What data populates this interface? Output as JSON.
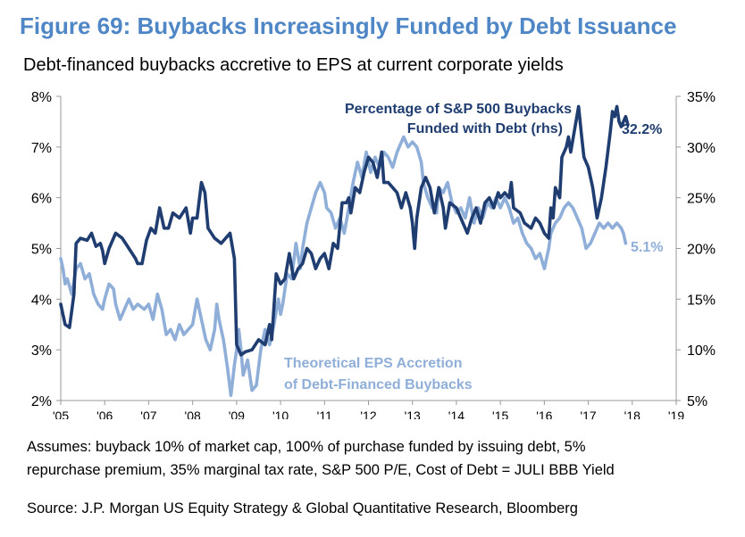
{
  "title": "Figure 69: Buybacks Increasingly Funded by Debt Issuance",
  "subtitle": "Debt-financed buybacks accretive to EPS at current corporate yields",
  "notes": [
    "Assumes: buyback 10% of market cap, 100% of purchase funded by issuing debt, 5%",
    "repurchase premium, 35% marginal tax rate, S&P 500 P/E, Cost of Debt = JULI BBB Yield"
  ],
  "source": "Source: J.P. Morgan US Equity Strategy & Global Quantitative Research, Bloomberg",
  "colors": {
    "title": "#4f86c6",
    "dark_series": "#1f3d70",
    "light_series": "#8faed8",
    "axis": "#999999"
  },
  "chart_data": {
    "type": "line",
    "x_tick_labels": [
      "'05",
      "'06",
      "'07",
      "'08",
      "'09",
      "'10",
      "'11",
      "'12",
      "'13",
      "'14",
      "'15",
      "'16",
      "'17",
      "'18",
      "'19"
    ],
    "xlim": [
      2005.0,
      2019.0
    ],
    "y_left": {
      "ticks": [
        "2%",
        "3%",
        "4%",
        "5%",
        "6%",
        "7%",
        "8%"
      ],
      "range": [
        2,
        8
      ]
    },
    "y_right": {
      "ticks": [
        "5%",
        "10%",
        "15%",
        "20%",
        "25%",
        "30%",
        "35%"
      ],
      "range": [
        5,
        35
      ]
    },
    "series": [
      {
        "name": "Percentage of S&P 500 Buybacks Funded with Debt (rhs)",
        "label_lines": [
          "Percentage of S&P 500 Buybacks",
          "Funded with Debt (rhs)"
        ],
        "axis": "right",
        "end_label": "32.2%",
        "points": [
          [
            2005.0,
            14.5
          ],
          [
            2005.1,
            12.5
          ],
          [
            2005.2,
            12.2
          ],
          [
            2005.3,
            15.5
          ],
          [
            2005.35,
            20.5
          ],
          [
            2005.45,
            21.0
          ],
          [
            2005.6,
            20.8
          ],
          [
            2005.7,
            21.5
          ],
          [
            2005.8,
            20.2
          ],
          [
            2005.9,
            20.5
          ],
          [
            2005.95,
            19.8
          ],
          [
            2006.0,
            18.5
          ],
          [
            2006.1,
            20.0
          ],
          [
            2006.25,
            21.5
          ],
          [
            2006.4,
            21.0
          ],
          [
            2006.55,
            20.0
          ],
          [
            2006.7,
            19.0
          ],
          [
            2006.75,
            18.5
          ],
          [
            2006.85,
            18.5
          ],
          [
            2006.95,
            20.8
          ],
          [
            2007.05,
            22.0
          ],
          [
            2007.15,
            21.5
          ],
          [
            2007.25,
            24.0
          ],
          [
            2007.35,
            22.0
          ],
          [
            2007.45,
            22.0
          ],
          [
            2007.55,
            23.5
          ],
          [
            2007.7,
            23.0
          ],
          [
            2007.85,
            24.0
          ],
          [
            2007.95,
            21.5
          ],
          [
            2008.0,
            23.0
          ],
          [
            2008.1,
            23.0
          ],
          [
            2008.2,
            26.5
          ],
          [
            2008.28,
            25.5
          ],
          [
            2008.35,
            22.0
          ],
          [
            2008.5,
            21.0
          ],
          [
            2008.65,
            20.5
          ],
          [
            2008.75,
            21.0
          ],
          [
            2008.85,
            21.5
          ],
          [
            2008.95,
            19.0
          ],
          [
            2009.0,
            10.5
          ],
          [
            2009.1,
            9.5
          ],
          [
            2009.2,
            9.8
          ],
          [
            2009.35,
            10.0
          ],
          [
            2009.5,
            11.0
          ],
          [
            2009.65,
            10.5
          ],
          [
            2009.75,
            12.5
          ],
          [
            2009.8,
            11.0
          ],
          [
            2009.9,
            17.5
          ],
          [
            2009.95,
            17.0
          ],
          [
            2010.0,
            16.5
          ],
          [
            2010.1,
            17.0
          ],
          [
            2010.2,
            19.5
          ],
          [
            2010.3,
            17.0
          ],
          [
            2010.4,
            18.0
          ],
          [
            2010.5,
            18.5
          ],
          [
            2010.6,
            20.0
          ],
          [
            2010.7,
            19.5
          ],
          [
            2010.8,
            18.0
          ],
          [
            2010.9,
            19.0
          ],
          [
            2011.0,
            19.5
          ],
          [
            2011.1,
            18.0
          ],
          [
            2011.2,
            20.5
          ],
          [
            2011.3,
            20.0
          ],
          [
            2011.4,
            24.5
          ],
          [
            2011.5,
            24.5
          ],
          [
            2011.55,
            25.0
          ],
          [
            2011.6,
            23.5
          ],
          [
            2011.7,
            26.0
          ],
          [
            2011.8,
            25.5
          ],
          [
            2011.9,
            27.5
          ],
          [
            2012.0,
            29.0
          ],
          [
            2012.1,
            28.5
          ],
          [
            2012.2,
            27.0
          ],
          [
            2012.3,
            29.5
          ],
          [
            2012.35,
            26.5
          ],
          [
            2012.45,
            26.5
          ],
          [
            2012.55,
            26.0
          ],
          [
            2012.65,
            25.5
          ],
          [
            2012.75,
            24.0
          ],
          [
            2012.85,
            25.5
          ],
          [
            2012.95,
            24.0
          ],
          [
            2013.0,
            22.5
          ],
          [
            2013.05,
            20.0
          ],
          [
            2013.1,
            23.0
          ],
          [
            2013.2,
            26.0
          ],
          [
            2013.3,
            27.0
          ],
          [
            2013.4,
            26.0
          ],
          [
            2013.5,
            23.5
          ],
          [
            2013.6,
            26.0
          ],
          [
            2013.7,
            24.0
          ],
          [
            2013.75,
            22.0
          ],
          [
            2013.85,
            24.5
          ],
          [
            2014.0,
            24.0
          ],
          [
            2014.15,
            22.5
          ],
          [
            2014.25,
            21.5
          ],
          [
            2014.35,
            23.0
          ],
          [
            2014.45,
            24.0
          ],
          [
            2014.55,
            22.5
          ],
          [
            2014.65,
            24.5
          ],
          [
            2014.75,
            25.0
          ],
          [
            2014.85,
            24.0
          ],
          [
            2014.95,
            25.5
          ],
          [
            2015.0,
            25.0
          ],
          [
            2015.1,
            25.5
          ],
          [
            2015.2,
            25.0
          ],
          [
            2015.25,
            26.5
          ],
          [
            2015.3,
            24.0
          ],
          [
            2015.45,
            23.5
          ],
          [
            2015.55,
            22.5
          ],
          [
            2015.7,
            22.0
          ],
          [
            2015.8,
            23.0
          ],
          [
            2015.9,
            22.5
          ],
          [
            2016.0,
            21.5
          ],
          [
            2016.1,
            21.0
          ],
          [
            2016.15,
            24.0
          ],
          [
            2016.2,
            23.0
          ],
          [
            2016.25,
            26.0
          ],
          [
            2016.35,
            25.0
          ],
          [
            2016.4,
            29.0
          ],
          [
            2016.5,
            30.0
          ],
          [
            2016.55,
            31.0
          ],
          [
            2016.6,
            29.5
          ],
          [
            2016.7,
            32.0
          ],
          [
            2016.78,
            34.0
          ],
          [
            2016.85,
            31.0
          ],
          [
            2016.9,
            29.0
          ],
          [
            2017.0,
            28.0
          ],
          [
            2017.1,
            26.0
          ],
          [
            2017.2,
            23.0
          ],
          [
            2017.3,
            25.0
          ],
          [
            2017.4,
            28.0
          ],
          [
            2017.5,
            31.5
          ],
          [
            2017.55,
            33.5
          ],
          [
            2017.6,
            33.0
          ],
          [
            2017.65,
            34.0
          ],
          [
            2017.7,
            32.5
          ],
          [
            2017.75,
            32.0
          ],
          [
            2017.85,
            33.0
          ],
          [
            2017.9,
            32.2
          ]
        ]
      },
      {
        "name": "Theoretical EPS Accretion of Debt-Financed Buybacks",
        "label_lines": [
          "Theoretical EPS Accretion",
          "of Debt-Financed Buybacks"
        ],
        "axis": "left",
        "end_label": "5.1%",
        "points": [
          [
            2005.0,
            4.8
          ],
          [
            2005.05,
            4.6
          ],
          [
            2005.1,
            4.3
          ],
          [
            2005.15,
            4.4
          ],
          [
            2005.25,
            4.1
          ],
          [
            2005.35,
            4.6
          ],
          [
            2005.45,
            4.7
          ],
          [
            2005.55,
            4.4
          ],
          [
            2005.65,
            4.5
          ],
          [
            2005.75,
            4.1
          ],
          [
            2005.85,
            3.9
          ],
          [
            2005.95,
            3.8
          ],
          [
            2006.0,
            4.0
          ],
          [
            2006.1,
            4.3
          ],
          [
            2006.2,
            4.2
          ],
          [
            2006.25,
            3.9
          ],
          [
            2006.35,
            3.6
          ],
          [
            2006.45,
            3.8
          ],
          [
            2006.55,
            4.0
          ],
          [
            2006.65,
            3.8
          ],
          [
            2006.75,
            3.9
          ],
          [
            2006.9,
            3.8
          ],
          [
            2007.0,
            3.9
          ],
          [
            2007.1,
            3.6
          ],
          [
            2007.2,
            4.1
          ],
          [
            2007.3,
            3.8
          ],
          [
            2007.4,
            3.3
          ],
          [
            2007.5,
            3.4
          ],
          [
            2007.6,
            3.2
          ],
          [
            2007.7,
            3.5
          ],
          [
            2007.8,
            3.3
          ],
          [
            2007.9,
            3.4
          ],
          [
            2008.0,
            3.5
          ],
          [
            2008.1,
            4.0
          ],
          [
            2008.2,
            3.6
          ],
          [
            2008.3,
            3.2
          ],
          [
            2008.4,
            3.0
          ],
          [
            2008.5,
            3.4
          ],
          [
            2008.55,
            3.9
          ],
          [
            2008.6,
            3.6
          ],
          [
            2008.7,
            3.2
          ],
          [
            2008.75,
            2.9
          ],
          [
            2008.8,
            2.6
          ],
          [
            2008.87,
            2.1
          ],
          [
            2008.95,
            2.7
          ],
          [
            2009.0,
            3.0
          ],
          [
            2009.05,
            3.4
          ],
          [
            2009.1,
            3.0
          ],
          [
            2009.15,
            2.5
          ],
          [
            2009.25,
            2.8
          ],
          [
            2009.35,
            2.2
          ],
          [
            2009.45,
            2.3
          ],
          [
            2009.55,
            3.0
          ],
          [
            2009.65,
            3.4
          ],
          [
            2009.75,
            3.1
          ],
          [
            2009.85,
            3.5
          ],
          [
            2009.95,
            4.0
          ],
          [
            2010.0,
            3.7
          ],
          [
            2010.05,
            3.9
          ],
          [
            2010.15,
            4.5
          ],
          [
            2010.25,
            4.4
          ],
          [
            2010.35,
            5.1
          ],
          [
            2010.45,
            4.6
          ],
          [
            2010.5,
            5.0
          ],
          [
            2010.6,
            5.5
          ],
          [
            2010.7,
            5.8
          ],
          [
            2010.8,
            6.1
          ],
          [
            2010.9,
            6.3
          ],
          [
            2011.0,
            6.1
          ],
          [
            2011.05,
            5.8
          ],
          [
            2011.15,
            5.7
          ],
          [
            2011.25,
            5.4
          ],
          [
            2011.35,
            5.6
          ],
          [
            2011.45,
            5.3
          ],
          [
            2011.55,
            5.8
          ],
          [
            2011.65,
            6.3
          ],
          [
            2011.75,
            6.7
          ],
          [
            2011.85,
            6.4
          ],
          [
            2011.95,
            6.9
          ],
          [
            2012.05,
            6.5
          ],
          [
            2012.15,
            6.8
          ],
          [
            2012.25,
            6.6
          ],
          [
            2012.35,
            6.9
          ],
          [
            2012.45,
            6.8
          ],
          [
            2012.55,
            6.6
          ],
          [
            2012.65,
            6.9
          ],
          [
            2012.75,
            7.1
          ],
          [
            2012.8,
            7.2
          ],
          [
            2012.9,
            7.0
          ],
          [
            2013.0,
            7.1
          ],
          [
            2013.1,
            7.0
          ],
          [
            2013.2,
            6.7
          ],
          [
            2013.25,
            6.3
          ],
          [
            2013.35,
            6.0
          ],
          [
            2013.45,
            5.8
          ],
          [
            2013.55,
            5.7
          ],
          [
            2013.6,
            6.2
          ],
          [
            2013.7,
            6.1
          ],
          [
            2013.8,
            6.3
          ],
          [
            2013.9,
            5.9
          ],
          [
            2014.0,
            5.7
          ],
          [
            2014.1,
            5.8
          ],
          [
            2014.2,
            5.6
          ],
          [
            2014.3,
            6.0
          ],
          [
            2014.4,
            5.5
          ],
          [
            2014.5,
            5.8
          ],
          [
            2014.6,
            5.6
          ],
          [
            2014.7,
            5.9
          ],
          [
            2014.8,
            5.8
          ],
          [
            2014.9,
            6.0
          ],
          [
            2015.0,
            5.8
          ],
          [
            2015.1,
            6.0
          ],
          [
            2015.2,
            5.8
          ],
          [
            2015.3,
            5.5
          ],
          [
            2015.4,
            5.6
          ],
          [
            2015.5,
            5.3
          ],
          [
            2015.6,
            5.1
          ],
          [
            2015.7,
            5.0
          ],
          [
            2015.8,
            4.8
          ],
          [
            2015.9,
            4.9
          ],
          [
            2016.0,
            4.6
          ],
          [
            2016.05,
            4.8
          ],
          [
            2016.1,
            5.0
          ],
          [
            2016.15,
            5.3
          ],
          [
            2016.25,
            5.5
          ],
          [
            2016.35,
            5.6
          ],
          [
            2016.45,
            5.8
          ],
          [
            2016.55,
            5.9
          ],
          [
            2016.65,
            5.8
          ],
          [
            2016.75,
            5.6
          ],
          [
            2016.85,
            5.4
          ],
          [
            2016.95,
            5.0
          ],
          [
            2017.05,
            5.1
          ],
          [
            2017.15,
            5.3
          ],
          [
            2017.25,
            5.5
          ],
          [
            2017.35,
            5.4
          ],
          [
            2017.45,
            5.5
          ],
          [
            2017.55,
            5.4
          ],
          [
            2017.65,
            5.5
          ],
          [
            2017.75,
            5.4
          ],
          [
            2017.8,
            5.3
          ],
          [
            2017.85,
            5.1
          ]
        ]
      }
    ]
  }
}
